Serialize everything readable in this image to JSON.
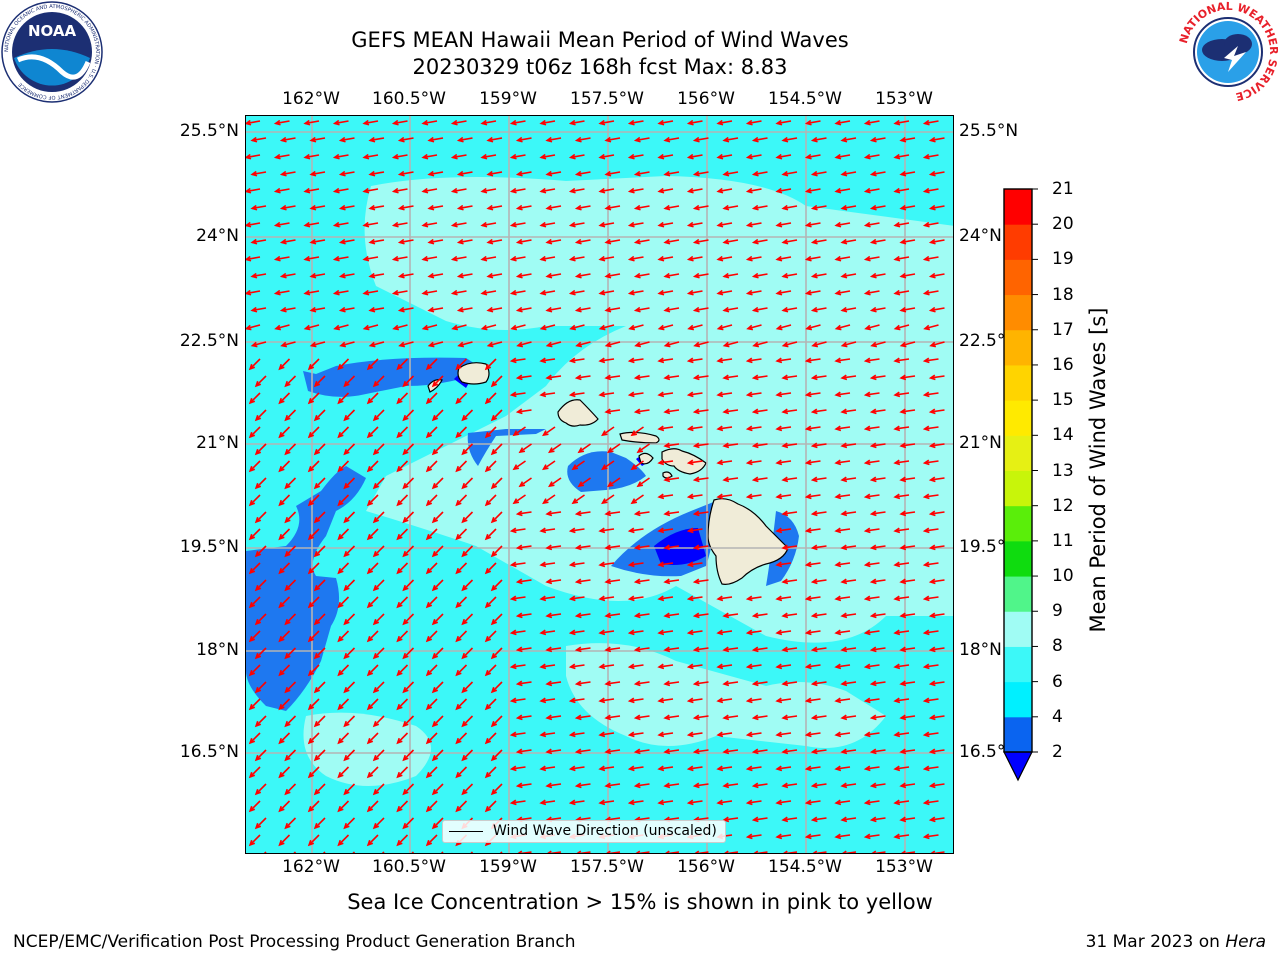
{
  "header": {
    "title_line1": "GEFS MEAN Hawaii Mean Period of Wind Waves",
    "title_line2": "20230329 t06z 168h fcst   Max: 8.83"
  },
  "axes": {
    "lon_ticks": [
      "162°W",
      "160.5°W",
      "159°W",
      "157.5°W",
      "156°W",
      "154.5°W",
      "153°W"
    ],
    "lat_ticks": [
      "25.5°N",
      "24°N",
      "22.5°N",
      "21°N",
      "19.5°N",
      "18°N",
      "16.5°N"
    ],
    "lon_range": [
      -163.0,
      -152.6
    ],
    "lat_range": [
      15.0,
      25.7
    ]
  },
  "legend": {
    "line_label": "Wind Wave Direction (unscaled)"
  },
  "colorbar": {
    "title": "Mean Period of Wind Waves [s]",
    "tick_labels": [
      "21",
      "20",
      "19",
      "18",
      "17",
      "16",
      "15",
      "14",
      "13",
      "12",
      "11",
      "10",
      "9",
      "8",
      "6",
      "4",
      "2"
    ],
    "levels": [
      2,
      4,
      6,
      8,
      9,
      10,
      11,
      12,
      13,
      14,
      15,
      16,
      17,
      18,
      19,
      20,
      21
    ],
    "colors": [
      "#0a64f0",
      "#00f0ff",
      "#3cf8f8",
      "#a0fcf4",
      "#50f58a",
      "#0fdc0f",
      "#5aee0a",
      "#c8f50a",
      "#e6f014",
      "#ffea00",
      "#ffd400",
      "#ffb400",
      "#ff8c00",
      "#ff6400",
      "#ff3c00",
      "#ff0000"
    ],
    "under_color": "#0000ff"
  },
  "footer": {
    "note": "Sea Ice Concentration > 15% is shown in pink to yellow",
    "credit": "NCEP/EMC/Verification Post Processing Product Generation Branch",
    "date": "31 Mar 2023 on",
    "machine": "Hera"
  },
  "logos": {
    "noaa_text": "NOAA",
    "noaa_ring": "NATIONAL OCEANIC AND ATMOSPHERIC ADMINISTRATION · U.S. DEPARTMENT OF COMMERCE",
    "nws_ring": "NATIONAL WEATHER SERVICE"
  },
  "map_colors": {
    "ocean_base": "#3cf8f8",
    "light_band": "#a0fcf4",
    "mid_blue": "#1e78f0",
    "deep_blue": "#0000ff",
    "land": "#f0ecd8",
    "arrows": "#ff0000",
    "grid": "#b4b4b4"
  },
  "wind_direction": "from east-northeast; northeasterly near islands and southwest region"
}
